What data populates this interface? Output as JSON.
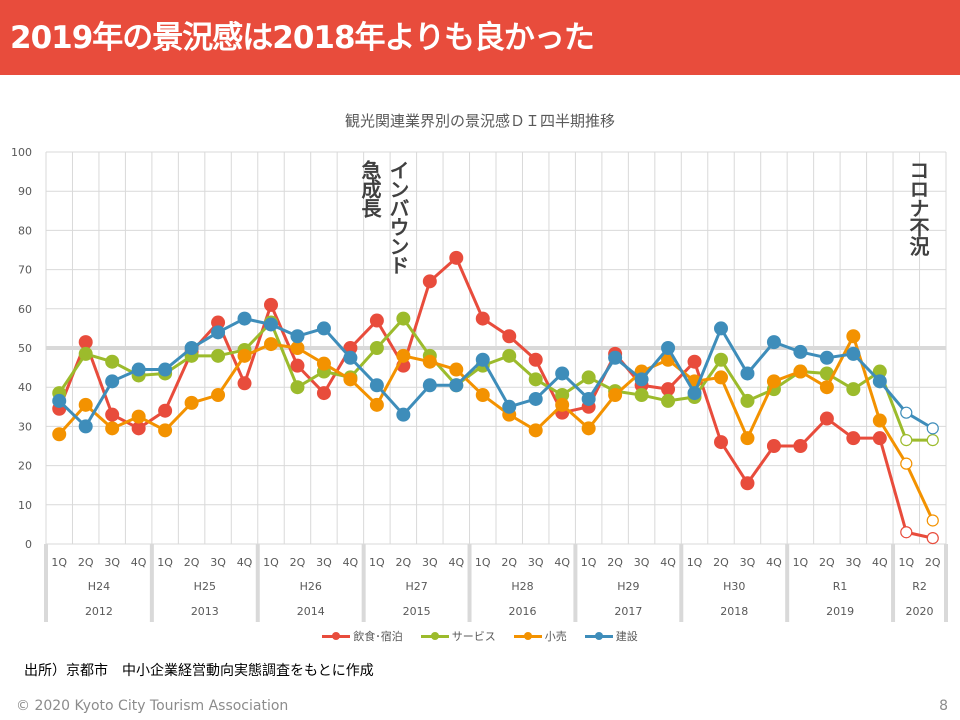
{
  "slide": {
    "title": "2019年の景況感は2018年よりも良かった",
    "source": "出所）京都市　中小企業経営動向実態調査をもとに作成",
    "footer": "© 2020 Kyoto City Tourism Association",
    "page_number": "8"
  },
  "annotations": {
    "inbound_line1": "インバウンド",
    "inbound_line2": "急成長",
    "corona": "コロナ不況"
  },
  "chart_data": {
    "type": "line",
    "title": "観光関連業界別の景況感ＤＩ四半期推移",
    "xlabel": "",
    "ylabel": "",
    "ylim": [
      0,
      100
    ],
    "yticks": [
      0,
      10,
      20,
      30,
      40,
      50,
      60,
      70,
      80,
      90,
      100
    ],
    "reference_line": 50,
    "grid": true,
    "legend_position": "bottom",
    "quarters": [
      "1Q",
      "2Q",
      "3Q",
      "4Q"
    ],
    "groups": [
      {
        "era": "H24",
        "year": "2012",
        "quarters": 4
      },
      {
        "era": "H25",
        "year": "2013",
        "quarters": 4
      },
      {
        "era": "H26",
        "year": "2014",
        "quarters": 4
      },
      {
        "era": "H27",
        "year": "2015",
        "quarters": 4
      },
      {
        "era": "H28",
        "year": "2016",
        "quarters": 4
      },
      {
        "era": "H29",
        "year": "2017",
        "quarters": 4
      },
      {
        "era": "H30",
        "year": "2018",
        "quarters": 4
      },
      {
        "era": "R1",
        "year": "2019",
        "quarters": 4
      },
      {
        "era": "R2",
        "year": "2020",
        "quarters": 2
      }
    ],
    "forecast_points_from_index": 32,
    "series": [
      {
        "name": "飲食･宿泊",
        "color": "#e84c3c",
        "values": [
          34.5,
          51.5,
          33,
          29.5,
          34,
          49,
          56.5,
          41,
          61,
          45.5,
          38.5,
          50,
          57,
          45.5,
          67,
          73,
          57.5,
          53,
          47,
          33.5,
          35,
          48.5,
          40.5,
          39.5,
          46.5,
          26,
          15.5,
          25,
          25,
          32,
          27,
          27,
          3,
          1.5
        ]
      },
      {
        "name": "サービス",
        "color": "#9cbb2c",
        "values": [
          38.5,
          48.5,
          46.5,
          43,
          43.5,
          48,
          48,
          49.5,
          56.5,
          40,
          44,
          42.5,
          50,
          57.5,
          48,
          40.5,
          45.5,
          48,
          42,
          38,
          42.5,
          39,
          38,
          36.5,
          37.5,
          47,
          36.5,
          39.5,
          44,
          43.5,
          39.5,
          44,
          26.5,
          26.5
        ]
      },
      {
        "name": "小売",
        "color": "#f39200",
        "values": [
          28,
          35.5,
          29.5,
          32.5,
          29,
          36,
          38,
          48,
          51,
          50,
          46,
          42,
          35.5,
          48,
          46.5,
          44.5,
          38,
          33,
          29,
          35.5,
          29.5,
          38,
          44,
          47,
          41.5,
          42.5,
          27,
          41.5,
          44,
          40,
          53,
          31.5,
          20.5,
          6
        ]
      },
      {
        "name": "建設",
        "color": "#3e8dba",
        "values": [
          36.5,
          30,
          41.5,
          44.5,
          44.5,
          50,
          54,
          57.5,
          56,
          53,
          55,
          47.5,
          40.5,
          33,
          40.5,
          40.5,
          47,
          35,
          37,
          43.5,
          37,
          47.5,
          42,
          50,
          38.5,
          55,
          43.5,
          51.5,
          49,
          47.5,
          48.5,
          41.5,
          33.5,
          29.5
        ]
      }
    ]
  }
}
